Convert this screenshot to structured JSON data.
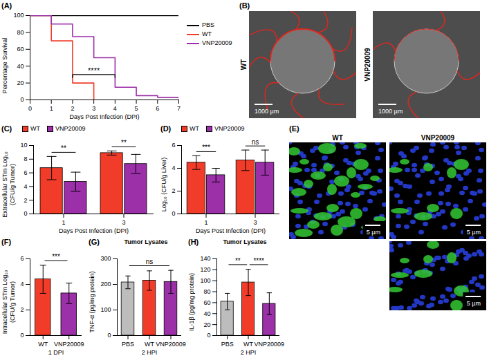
{
  "chart_data": [
    {
      "panel": "(A)",
      "type": "line",
      "x_label": "Days Post Infection (DPI)",
      "y_label": "Percentage Survival",
      "xlim": [
        0,
        7
      ],
      "xticks": [
        0,
        1,
        2,
        3,
        4,
        5,
        6,
        7
      ],
      "ylim": [
        0,
        100
      ],
      "yticks": [
        0,
        20,
        40,
        60,
        80,
        100
      ],
      "line_style": "step",
      "legend": "right",
      "series": [
        {
          "name": "PBS",
          "color": "#000000",
          "x": [
            0,
            7
          ],
          "values": [
            100,
            100
          ]
        },
        {
          "name": "WT",
          "color": "#f03c28",
          "x": [
            0,
            1,
            2,
            3
          ],
          "values": [
            100,
            70,
            20,
            0
          ]
        },
        {
          "name": "VNP20009",
          "color": "#9b30a8",
          "x": [
            0,
            1,
            2,
            3,
            4,
            5,
            6,
            7
          ],
          "values": [
            100,
            90,
            75,
            50,
            15,
            5,
            3,
            0
          ]
        }
      ],
      "annotations": [
        {
          "text": "****",
          "x": [
            2,
            4
          ],
          "y": 30
        }
      ]
    },
    {
      "panel": "(B)",
      "type": "image",
      "labels": [
        "WT",
        "VNP20009"
      ],
      "scale_bar": "1000 µm"
    },
    {
      "panel": "(C)",
      "type": "bar",
      "x_label": "Days Post Infection (DPI)",
      "y_label": "Extracellular STm Log₁₀ (CFU/g Tumor)",
      "categories": [
        "1",
        "3"
      ],
      "ylim": [
        0,
        10
      ],
      "yticks": [
        0,
        2,
        4,
        6,
        8,
        10
      ],
      "legend": "top",
      "series": [
        {
          "name": "WT",
          "color": "#f03c28",
          "values": [
            6.7,
            8.9
          ],
          "errors": [
            1.7,
            0.3
          ]
        },
        {
          "name": "VNP20009",
          "color": "#9b30a8",
          "values": [
            4.7,
            7.3
          ],
          "errors": [
            1.4,
            1.4
          ]
        }
      ],
      "annotations": [
        {
          "category": "1",
          "text": "**"
        },
        {
          "category": "3",
          "text": "**"
        }
      ]
    },
    {
      "panel": "(D)",
      "type": "bar",
      "x_label": "Days Post Infection (DPI)",
      "y_label": "Log₁₀ (CFU/g Liver)",
      "categories": [
        "1",
        "3"
      ],
      "ylim": [
        0,
        6
      ],
      "yticks": [
        0,
        2,
        4,
        6
      ],
      "legend": "top",
      "series": [
        {
          "name": "WT",
          "color": "#f03c28",
          "values": [
            4.5,
            4.7
          ],
          "errors": [
            0.6,
            0.9
          ]
        },
        {
          "name": "VNP20009",
          "color": "#9b30a8",
          "values": [
            3.4,
            4.5
          ],
          "errors": [
            0.6,
            1.1
          ]
        }
      ],
      "annotations": [
        {
          "category": "1",
          "text": "***"
        },
        {
          "category": "3",
          "text": "ns"
        }
      ]
    },
    {
      "panel": "(E)",
      "type": "image",
      "labels": [
        "WT",
        "VNP20009"
      ],
      "scale_bar": "5 µm"
    },
    {
      "panel": "(F)",
      "type": "bar",
      "x_label": "1 DPI",
      "y_label": "Intracellular STm Log₁₀ (CFU/g Tumor)",
      "categories": [
        "WT",
        "VNP20009"
      ],
      "values": [
        4.4,
        3.3
      ],
      "errors": [
        1.1,
        0.8
      ],
      "colors": [
        "#f03c28",
        "#9b30a8"
      ],
      "ylim": [
        0,
        6
      ],
      "yticks": [
        0,
        2,
        4,
        6
      ],
      "annotations": [
        {
          "from": "WT",
          "to": "VNP20009",
          "text": "***"
        }
      ]
    },
    {
      "panel": "(G)",
      "type": "bar",
      "title": "Tumor Lysates",
      "x_label": "2 HPI",
      "y_label": "TNF-α (pg/mg protein)",
      "categories": [
        "PBS",
        "WT",
        "VNP20009"
      ],
      "values": [
        208,
        215,
        210
      ],
      "errors": [
        25,
        38,
        45
      ],
      "colors": [
        "#bdbdbd",
        "#f03c28",
        "#9b30a8"
      ],
      "ylim": [
        0,
        300
      ],
      "yticks": [
        0,
        100,
        200,
        300
      ],
      "annotations": [
        {
          "from": "PBS",
          "to": "VNP20009",
          "text": "ns"
        }
      ]
    },
    {
      "panel": "(H)",
      "type": "bar",
      "title": "Tumor Lysates",
      "x_label": "2 HPI",
      "y_label": "IL-1β (pg/mg protein)",
      "categories": [
        "PBS",
        "WT",
        "VNP20009"
      ],
      "values": [
        62,
        97,
        58
      ],
      "errors": [
        15,
        24,
        20
      ],
      "colors": [
        "#bdbdbd",
        "#f03c28",
        "#9b30a8"
      ],
      "ylim": [
        0,
        140
      ],
      "yticks": [
        0,
        20,
        40,
        60,
        80,
        100,
        120,
        140
      ],
      "annotations": [
        {
          "from": "PBS",
          "to": "WT",
          "text": "**"
        },
        {
          "from": "WT",
          "to": "VNP20009",
          "text": "****"
        }
      ]
    }
  ]
}
